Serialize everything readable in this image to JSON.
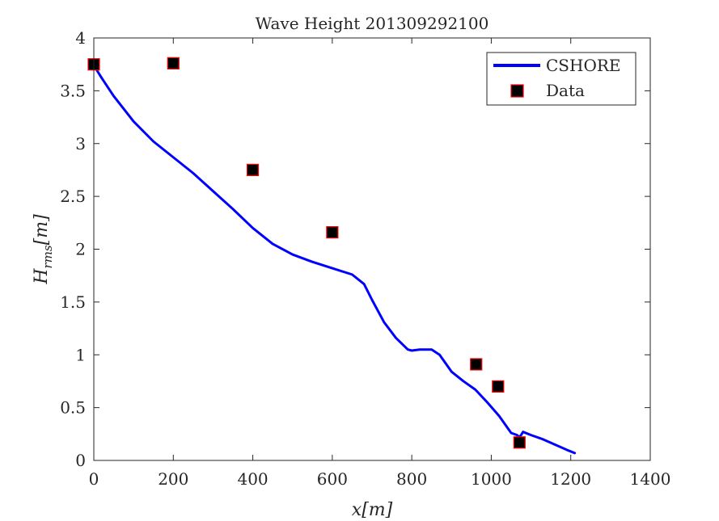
{
  "chart_data": {
    "type": "line",
    "title": "Wave Height 201309292100",
    "xlabel": "x[m]",
    "ylabel_base": "H",
    "ylabel_sub": "rms",
    "ylabel_unit": "[m]",
    "xlim": [
      0,
      1400
    ],
    "ylim": [
      0,
      4
    ],
    "xticks": [
      0,
      200,
      400,
      600,
      800,
      1000,
      1200,
      1400
    ],
    "xtick_labels": [
      "0",
      "200",
      "400",
      "600",
      "800",
      "1000",
      "1200",
      "1400"
    ],
    "yticks": [
      0,
      0.5,
      1,
      1.5,
      2,
      2.5,
      3,
      3.5,
      4
    ],
    "ytick_labels": [
      "0",
      "0.5",
      "1",
      "1.5",
      "2",
      "2.5",
      "3",
      "3.5",
      "4"
    ],
    "grid": false,
    "legend_position": "top-right",
    "series": [
      {
        "name": "CSHORE",
        "type": "line",
        "color": "#0000ff",
        "x": [
          0,
          20,
          50,
          100,
          150,
          200,
          250,
          300,
          350,
          400,
          450,
          500,
          550,
          600,
          650,
          680,
          700,
          730,
          760,
          790,
          800,
          820,
          850,
          870,
          900,
          930,
          960,
          990,
          1020,
          1050,
          1065,
          1070,
          1075,
          1080,
          1100,
          1130,
          1160,
          1190,
          1210
        ],
        "y": [
          3.74,
          3.62,
          3.45,
          3.21,
          3.02,
          2.87,
          2.72,
          2.55,
          2.38,
          2.2,
          2.05,
          1.95,
          1.88,
          1.82,
          1.76,
          1.67,
          1.52,
          1.31,
          1.16,
          1.05,
          1.04,
          1.05,
          1.05,
          1.0,
          0.84,
          0.75,
          0.67,
          0.55,
          0.42,
          0.26,
          0.24,
          0.22,
          0.24,
          0.27,
          0.24,
          0.2,
          0.15,
          0.1,
          0.07
        ]
      },
      {
        "name": "Data",
        "type": "scatter",
        "marker": "square",
        "face_color": "#000000",
        "edge_color": "#ff0000",
        "x": [
          0,
          200,
          400,
          600,
          962,
          1017,
          1071
        ],
        "y": [
          3.75,
          3.76,
          2.75,
          2.16,
          0.91,
          0.7,
          0.17
        ]
      }
    ]
  }
}
